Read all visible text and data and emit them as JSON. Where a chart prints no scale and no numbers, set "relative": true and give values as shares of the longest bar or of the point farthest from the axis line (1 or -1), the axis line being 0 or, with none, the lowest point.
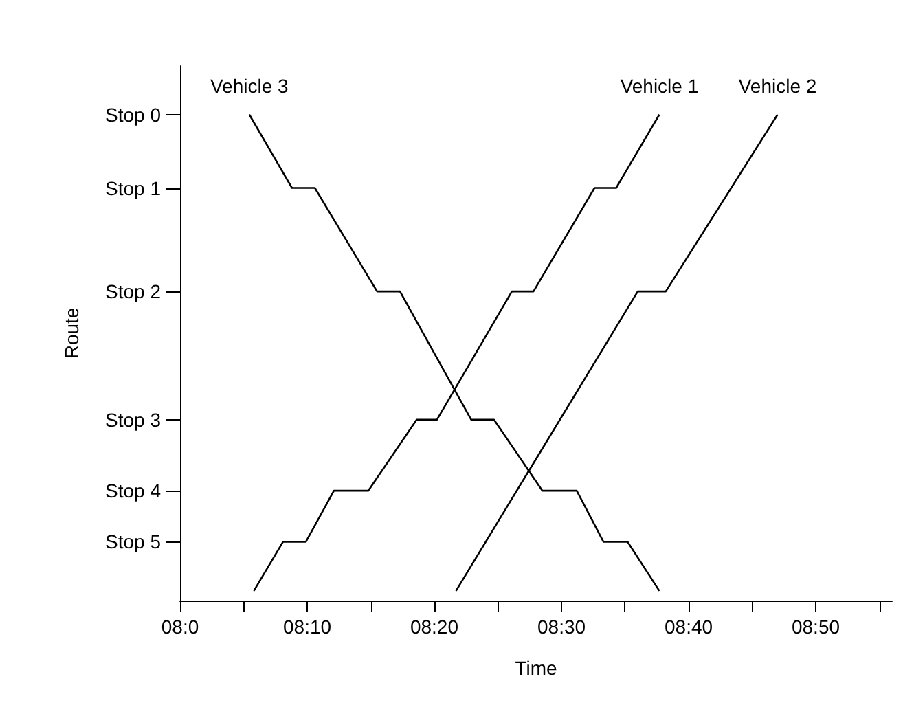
{
  "chart_data": {
    "type": "line",
    "xlabel": "Time",
    "ylabel": "Route",
    "relative": true,
    "xlim": [
      8.0,
      8.9333
    ],
    "xticks": [
      {
        "value": 8.0,
        "label": "08:0"
      },
      {
        "value": 8.0833,
        "label": null
      },
      {
        "value": 8.1667,
        "label": "08:10"
      },
      {
        "value": 8.25,
        "label": null
      },
      {
        "value": 8.3333,
        "label": "08:20"
      },
      {
        "value": 8.4167,
        "label": null
      },
      {
        "value": 8.5,
        "label": "08:30"
      },
      {
        "value": 8.5833,
        "label": null
      },
      {
        "value": 8.6667,
        "label": "08:40"
      },
      {
        "value": 8.75,
        "label": null
      },
      {
        "value": 8.8333,
        "label": "08:50"
      },
      {
        "value": 8.9167,
        "label": null
      }
    ],
    "annotations": [
      "Stop 0",
      "Stop 1",
      "Stop 2",
      "Stop 3",
      "Stop 4",
      "Stop 5"
    ],
    "grid": false,
    "legend": false,
    "marker": "none",
    "line_style": "solid",
    "series": [
      {
        "name": "Vehicle 3",
        "color": "#000000",
        "x": [
          8.0908,
          8.1467,
          8.1767,
          8.2583,
          8.2883,
          8.3817,
          8.4117,
          8.475,
          8.52,
          8.555,
          8.5867,
          8.6283
        ],
        "values": [
          1,
          0.849,
          0.849,
          0.636,
          0.636,
          0.372,
          0.372,
          0.226,
          0.226,
          0.121,
          0.121,
          0.02
        ]
      },
      {
        "name": "Vehicle 1",
        "color": "#000000",
        "x": [
          8.0967,
          8.135,
          8.165,
          8.2017,
          8.2467,
          8.31,
          8.3367,
          8.435,
          8.4633,
          8.5433,
          8.5717,
          8.6283
        ],
        "values": [
          0.02,
          0.121,
          0.121,
          0.226,
          0.226,
          0.372,
          0.372,
          0.636,
          0.636,
          0.849,
          0.849,
          1
        ]
      },
      {
        "name": "Vehicle 2",
        "color": "#000000",
        "x": [
          8.3617,
          8.6,
          8.6367,
          8.7833
        ],
        "values": [
          0.02,
          0.636,
          0.636,
          1
        ]
      }
    ]
  }
}
